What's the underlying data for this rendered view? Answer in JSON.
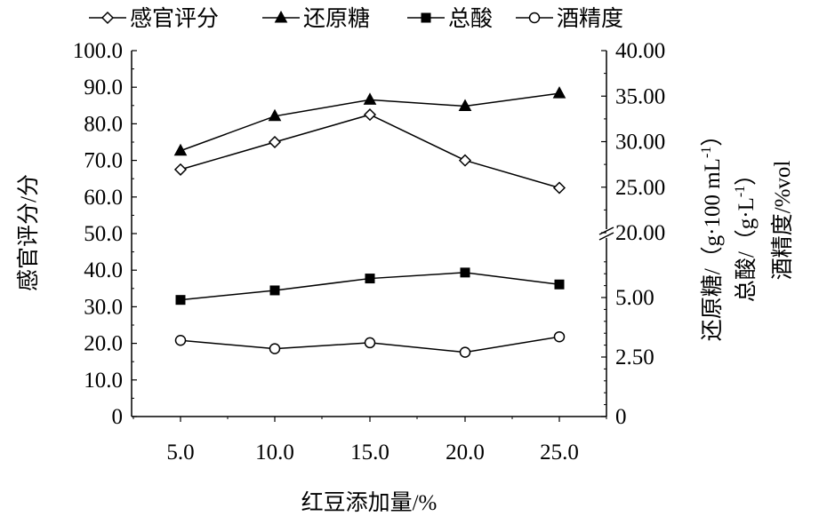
{
  "chart_data": {
    "type": "line",
    "categories": [
      "5.0",
      "10.0",
      "15.0",
      "20.0",
      "25.0"
    ],
    "xlabel": "红豆添加量/%",
    "ylabel_left": "感官评分/分",
    "ylabel_right_1": "还原糖/（g·100 mL",
    "ylabel_right_1_sup": "-1",
    "ylabel_right_1_end": "）",
    "ylabel_right_2": "总酸/（g·L",
    "ylabel_right_2_sup": "-1",
    "ylabel_right_2_end": "）",
    "ylabel_right_3": "酒精度/%vol",
    "left_axis": {
      "ylim": [
        0,
        100
      ],
      "ticks": [
        "0",
        "10.0",
        "20.0",
        "30.0",
        "40.0",
        "50.0",
        "60.0",
        "70.0",
        "80.0",
        "90.0",
        "100.0"
      ]
    },
    "right_axis": {
      "broken": true,
      "lower_segment": {
        "range": [
          0,
          7.5
        ],
        "ticks": [
          "0",
          "2.50",
          "5.00"
        ]
      },
      "upper_segment": {
        "range": [
          20,
          40
        ],
        "ticks": [
          "20.00",
          "25.00",
          "30.00",
          "35.00",
          "40.00"
        ]
      }
    },
    "legend": {
      "placement": "top"
    },
    "series": [
      {
        "name": "感官评分",
        "axis": "left",
        "marker": "diamond-open",
        "values": [
          67.5,
          75.0,
          82.5,
          70.0,
          62.5
        ]
      },
      {
        "name": "还原糖",
        "axis": "right",
        "marker": "triangle-filled",
        "values": [
          29.0,
          32.8,
          34.6,
          33.9,
          35.3
        ]
      },
      {
        "name": "总酸",
        "axis": "right",
        "marker": "square-filled",
        "values": [
          4.9,
          5.3,
          5.8,
          6.05,
          5.55
        ]
      },
      {
        "name": "酒精度",
        "axis": "right",
        "marker": "circle-open",
        "values": [
          3.2,
          2.85,
          3.1,
          2.7,
          3.35
        ]
      }
    ]
  }
}
